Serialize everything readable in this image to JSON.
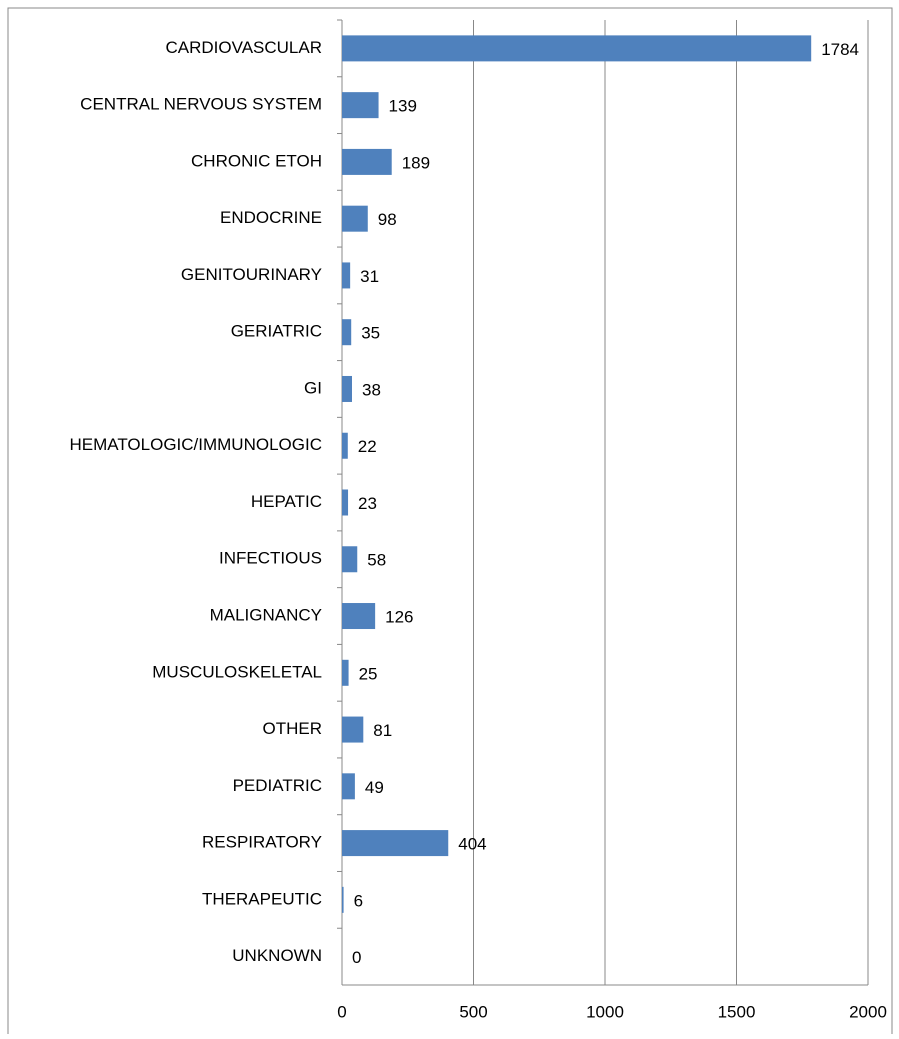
{
  "chart_data": {
    "type": "bar",
    "orientation": "horizontal",
    "categories": [
      "CARDIOVASCULAR",
      "CENTRAL NERVOUS SYSTEM",
      "CHRONIC ETOH",
      "ENDOCRINE",
      "GENITOURINARY",
      "GERIATRIC",
      "GI",
      "HEMATOLOGIC/IMMUNOLOGIC",
      "HEPATIC",
      "INFECTIOUS",
      "MALIGNANCY",
      "MUSCULOSKELETAL",
      "OTHER",
      "PEDIATRIC",
      "RESPIRATORY",
      "THERAPEUTIC",
      "UNKNOWN"
    ],
    "values": [
      1784,
      139,
      189,
      98,
      31,
      35,
      38,
      22,
      23,
      58,
      126,
      25,
      81,
      49,
      404,
      6,
      0
    ],
    "color": "#4f81bd",
    "xlim": [
      0,
      2000
    ],
    "xticks": [
      0,
      500,
      1000,
      1500,
      2000
    ],
    "grid": true
  }
}
